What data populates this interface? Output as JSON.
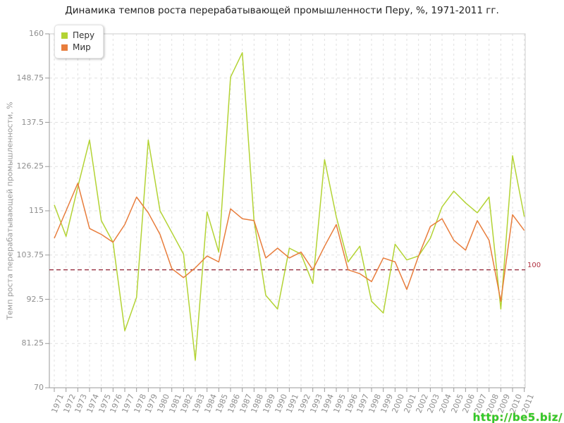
{
  "page": {
    "title": "Динамика темпов роста перерабатывающей промышленности Перу, %, 1971-2011 гг.",
    "watermark": "http://be5.biz/"
  },
  "chart_data": {
    "type": "line",
    "title": "Динамика темпов роста перерабатывающей промышленности Перу, %, 1971-2011 гг.",
    "xlabel": "",
    "ylabel": "Темп роста перерабатывающей промышленности, %",
    "ylim": [
      70,
      160
    ],
    "yticks": [
      "160",
      "148.75",
      "137.5",
      "126.25",
      "115",
      "103.75",
      "92.5",
      "81.25",
      "70"
    ],
    "ytick_values": [
      160,
      148.75,
      137.5,
      126.25,
      115,
      103.75,
      92.5,
      81.25,
      70
    ],
    "grid": "dashed",
    "legend_position": "top-left",
    "reference_line": {
      "value": 100,
      "label": "100",
      "color": "#993344"
    },
    "x": [
      1971,
      1972,
      1973,
      1974,
      1975,
      1976,
      1977,
      1978,
      1979,
      1980,
      1981,
      1982,
      1983,
      1984,
      1985,
      1986,
      1987,
      1988,
      1989,
      1990,
      1991,
      1992,
      1993,
      1994,
      1995,
      1996,
      1997,
      1998,
      1999,
      2000,
      2001,
      2002,
      2003,
      2004,
      2005,
      2006,
      2007,
      2008,
      2009,
      2010,
      2011
    ],
    "series": [
      {
        "name": "Перу",
        "color": "#b3d334",
        "values": [
          116.5,
          108.5,
          121,
          133,
          112.5,
          107,
          84.5,
          93,
          133,
          115,
          109.5,
          104,
          77,
          114.7,
          104.5,
          149,
          155.2,
          112.5,
          93.5,
          90,
          105.5,
          104,
          96.5,
          128,
          113.5,
          102,
          106,
          92,
          89,
          106.5,
          102.5,
          103.5,
          108,
          116,
          120,
          117,
          114.5,
          118.5,
          90,
          129,
          113.5
        ]
      },
      {
        "name": "Мир",
        "color": "#e87d3c",
        "values": [
          108,
          115,
          122,
          110.5,
          109,
          107,
          111.5,
          118.5,
          114.5,
          109,
          100.3,
          98,
          100.5,
          103.5,
          102,
          115.5,
          113,
          112.5,
          103,
          105.5,
          103,
          104.5,
          100,
          106,
          111.5,
          100,
          99,
          97,
          103,
          102,
          95,
          103.5,
          111,
          113,
          107.5,
          105,
          112.5,
          107.5,
          92,
          114,
          110
        ]
      }
    ],
    "colors": {
      "grid": "#e0e0e0",
      "axis": "#999999",
      "border": "#cccccc",
      "tick_text": "#909090"
    }
  }
}
